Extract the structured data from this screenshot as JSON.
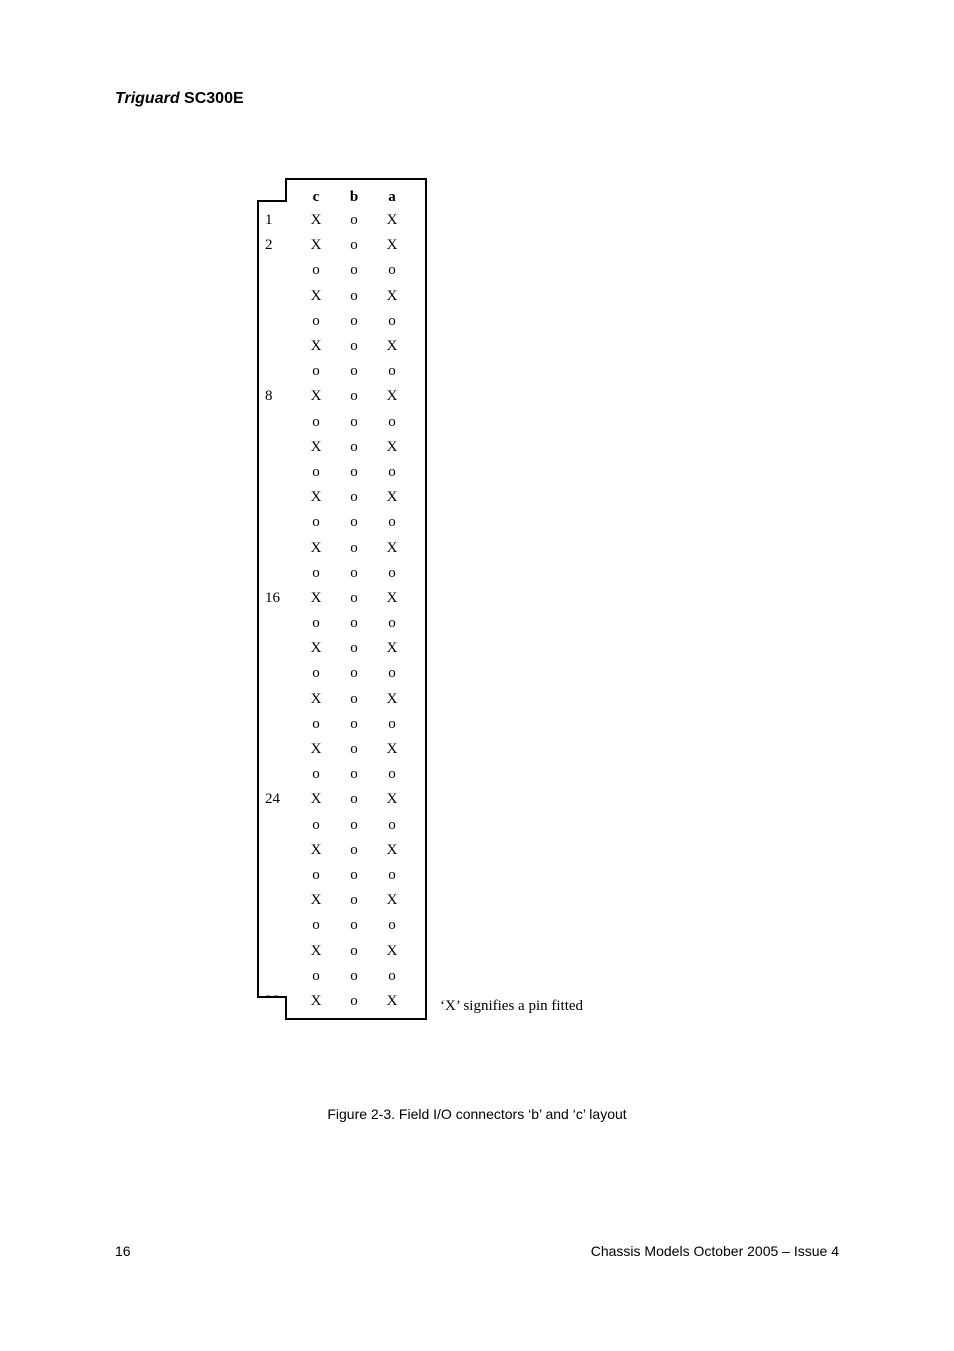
{
  "title": {
    "italic": "Triguard",
    "bold": " SC300E"
  },
  "connector": {
    "headers": [
      "c",
      "b",
      "a"
    ],
    "rowLabels": {
      "0": "1",
      "1": "2",
      "7": "8",
      "15": "16",
      "23": "24",
      "31": "32"
    },
    "rows": [
      [
        "X",
        "o",
        "X"
      ],
      [
        "X",
        "o",
        "X"
      ],
      [
        "o",
        "o",
        "o"
      ],
      [
        "X",
        "o",
        "X"
      ],
      [
        "o",
        "o",
        "o"
      ],
      [
        "X",
        "o",
        "X"
      ],
      [
        "o",
        "o",
        "o"
      ],
      [
        "X",
        "o",
        "X"
      ],
      [
        "o",
        "o",
        "o"
      ],
      [
        "X",
        "o",
        "X"
      ],
      [
        "o",
        "o",
        "o"
      ],
      [
        "X",
        "o",
        "X"
      ],
      [
        "o",
        "o",
        "o"
      ],
      [
        "X",
        "o",
        "X"
      ],
      [
        "o",
        "o",
        "o"
      ],
      [
        "X",
        "o",
        "X"
      ],
      [
        "o",
        "o",
        "o"
      ],
      [
        "X",
        "o",
        "X"
      ],
      [
        "o",
        "o",
        "o"
      ],
      [
        "X",
        "o",
        "X"
      ],
      [
        "o",
        "o",
        "o"
      ],
      [
        "X",
        "o",
        "X"
      ],
      [
        "o",
        "o",
        "o"
      ],
      [
        "X",
        "o",
        "X"
      ],
      [
        "o",
        "o",
        "o"
      ],
      [
        "X",
        "o",
        "X"
      ],
      [
        "o",
        "o",
        "o"
      ],
      [
        "X",
        "o",
        "X"
      ],
      [
        "o",
        "o",
        "o"
      ],
      [
        "X",
        "o",
        "X"
      ],
      [
        "o",
        "o",
        "o"
      ],
      [
        "X",
        "o",
        "X"
      ]
    ]
  },
  "legend": "‘X’ signifies a pin fitted",
  "figureCaption": "Figure 2-3. Field I/O connectors ‘b’ and ‘c’ layout",
  "pageNumber": "16",
  "footer": "Chassis Models October 2005 – Issue 4"
}
